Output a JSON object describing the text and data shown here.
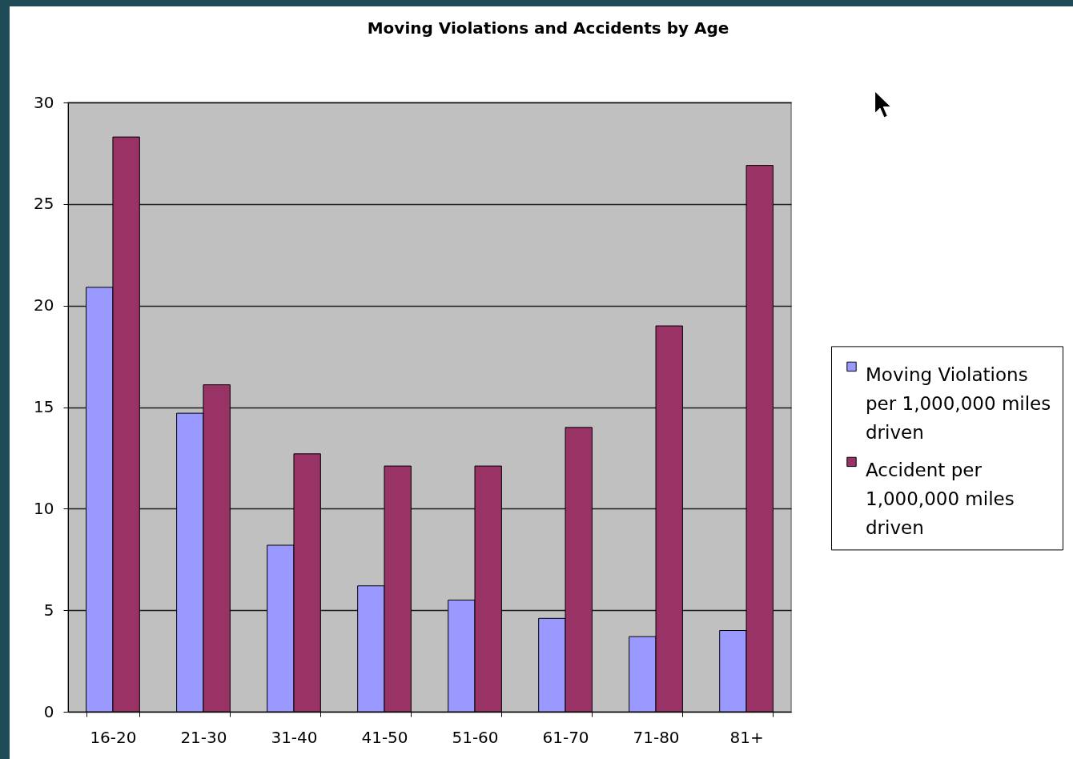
{
  "chart_data": {
    "type": "bar",
    "title": "Moving Violations and Accidents by Age",
    "categories": [
      "16-20",
      "21-30",
      "31-40",
      "41-50",
      "51-60",
      "61-70",
      "71-80",
      "81+"
    ],
    "series": [
      {
        "name": "Moving Violations per 1,000,000 miles driven",
        "color": "#9999ff",
        "values": [
          20.9,
          14.7,
          8.2,
          6.2,
          5.5,
          4.6,
          3.7,
          4.0
        ]
      },
      {
        "name": "Accident per 1,000,000 miles driven",
        "color": "#993366",
        "values": [
          28.3,
          16.1,
          12.7,
          12.1,
          12.1,
          14.0,
          19.0,
          26.9
        ]
      }
    ],
    "ylim": [
      0,
      30
    ],
    "yticks": [
      0,
      5,
      10,
      15,
      20,
      25,
      30
    ],
    "grid": "y",
    "legend": "right"
  }
}
